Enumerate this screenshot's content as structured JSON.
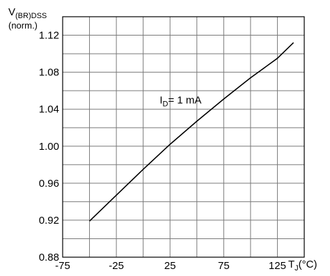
{
  "chart_data": {
    "type": "line",
    "ylabel_main": "V",
    "ylabel_sub": "(BR)DSS",
    "ylabel_norm": "(norm.)",
    "xlabel_main": "T",
    "xlabel_sub": "J",
    "xlabel_unit": "(°C)",
    "xlim": [
      -75,
      150
    ],
    "ylim": [
      0.88,
      1.14
    ],
    "x_tick_values": [
      -75,
      -25,
      25,
      75,
      125
    ],
    "x_tick_labels": [
      "-75",
      "-25",
      "25",
      "75",
      "125"
    ],
    "y_tick_values": [
      0.88,
      0.92,
      0.96,
      1.0,
      1.04,
      1.08,
      1.12
    ],
    "y_tick_labels": [
      "0.88",
      "0.92",
      "0.96",
      "1.00",
      "1.04",
      "1.08",
      "1.12"
    ],
    "grid": true,
    "grid_x_step": 25,
    "grid_y_step": 0.02,
    "series": [
      {
        "color": "#000000",
        "x": [
          -50,
          -25,
          0,
          25,
          50,
          75,
          100,
          125,
          140
        ],
        "y": [
          0.919,
          0.947,
          0.975,
          1.002,
          1.027,
          1.051,
          1.074,
          1.095,
          1.112
        ]
      }
    ],
    "annotation": {
      "main": "I",
      "sub": "D",
      "rest": "= 1 mA",
      "anchor_x": 40,
      "anchor_y": 1.046
    }
  }
}
